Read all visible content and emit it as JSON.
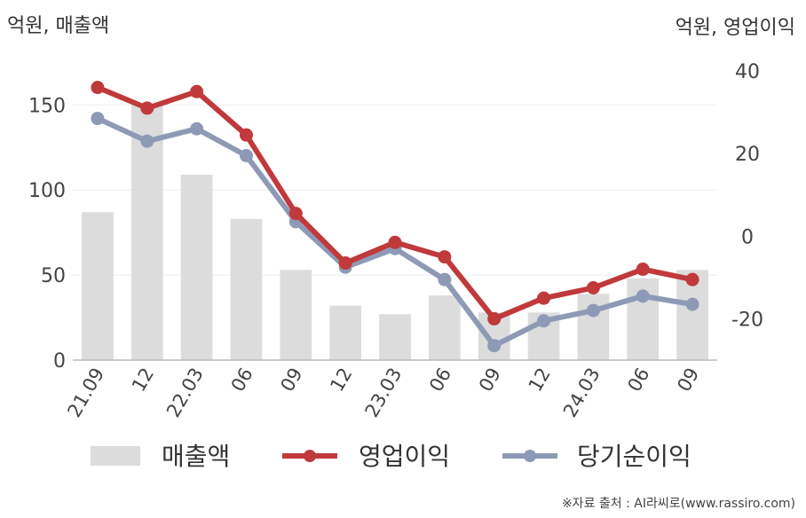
{
  "chart_data": {
    "type": "bar+line",
    "categories": [
      "21.09",
      "12",
      "22.03",
      "06",
      "09",
      "12",
      "23.03",
      "06",
      "09",
      "12",
      "24.03",
      "06",
      "09"
    ],
    "left_axis": {
      "unit_label": "억원, 매출액",
      "ylim": [
        0,
        170
      ],
      "ticks": [
        "0",
        "50",
        "100",
        "150"
      ],
      "tick_values": [
        0,
        50,
        100,
        150
      ]
    },
    "right_axis": {
      "unit_label": "억원, 영업이익",
      "ylim": [
        -30,
        40
      ],
      "ticks": [
        "-20",
        "0",
        "20",
        "40"
      ],
      "tick_values": [
        -20,
        0,
        20,
        40
      ]
    },
    "series": [
      {
        "name": "매출액",
        "kind": "bar",
        "axis": "left",
        "color": "#dcdcdc",
        "values": [
          87,
          150,
          109,
          83,
          53,
          32,
          27,
          38,
          28,
          28,
          39,
          48,
          53
        ]
      },
      {
        "name": "영업이익",
        "kind": "line",
        "axis": "right",
        "color": "#c0393b",
        "values": [
          36,
          31,
          35,
          24.5,
          5.5,
          -6.5,
          -1.5,
          -5,
          -20,
          -15,
          -12.5,
          -8,
          -10.5
        ]
      },
      {
        "name": "당기순이익",
        "kind": "line",
        "axis": "right",
        "color": "#8e9ab5",
        "values": [
          28.5,
          23,
          26,
          19.5,
          3.5,
          -7.5,
          -3,
          -10.5,
          -26.5,
          -20.5,
          -18,
          -14.5,
          -16.5
        ]
      }
    ],
    "legend": {
      "position": "bottom"
    },
    "grid": true
  },
  "source": "※자료 출처 : AI라씨로(www.rassiro.com)"
}
